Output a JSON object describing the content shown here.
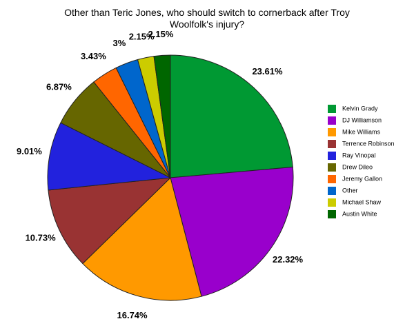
{
  "chart_data": {
    "type": "pie",
    "title": "Other than Teric Jones, who should switch to cornerback after Troy Woolfolk's injury?",
    "categories": [
      "Kelvin Grady",
      "DJ Williamson",
      "Mike Williams",
      "Terrence Robinson",
      "Ray Vinopal",
      "Drew Dileo",
      "Jeremy Gallon",
      "Other",
      "Michael Shaw",
      "Austin White"
    ],
    "values": [
      23.61,
      22.32,
      16.74,
      10.73,
      9.01,
      6.87,
      3.43,
      3,
      2.15,
      2.15
    ],
    "value_labels": [
      "23.61%",
      "22.32%",
      "16.74%",
      "10.73%",
      "9.01%",
      "6.87%",
      "3.43%",
      "3%",
      "2.15%",
      "2.15%"
    ],
    "colors": [
      "#009933",
      "#9900cc",
      "#ff9900",
      "#993333",
      "#2222dd",
      "#666600",
      "#ff6600",
      "#0066cc",
      "#cccc00",
      "#006600"
    ],
    "legend": "right"
  }
}
